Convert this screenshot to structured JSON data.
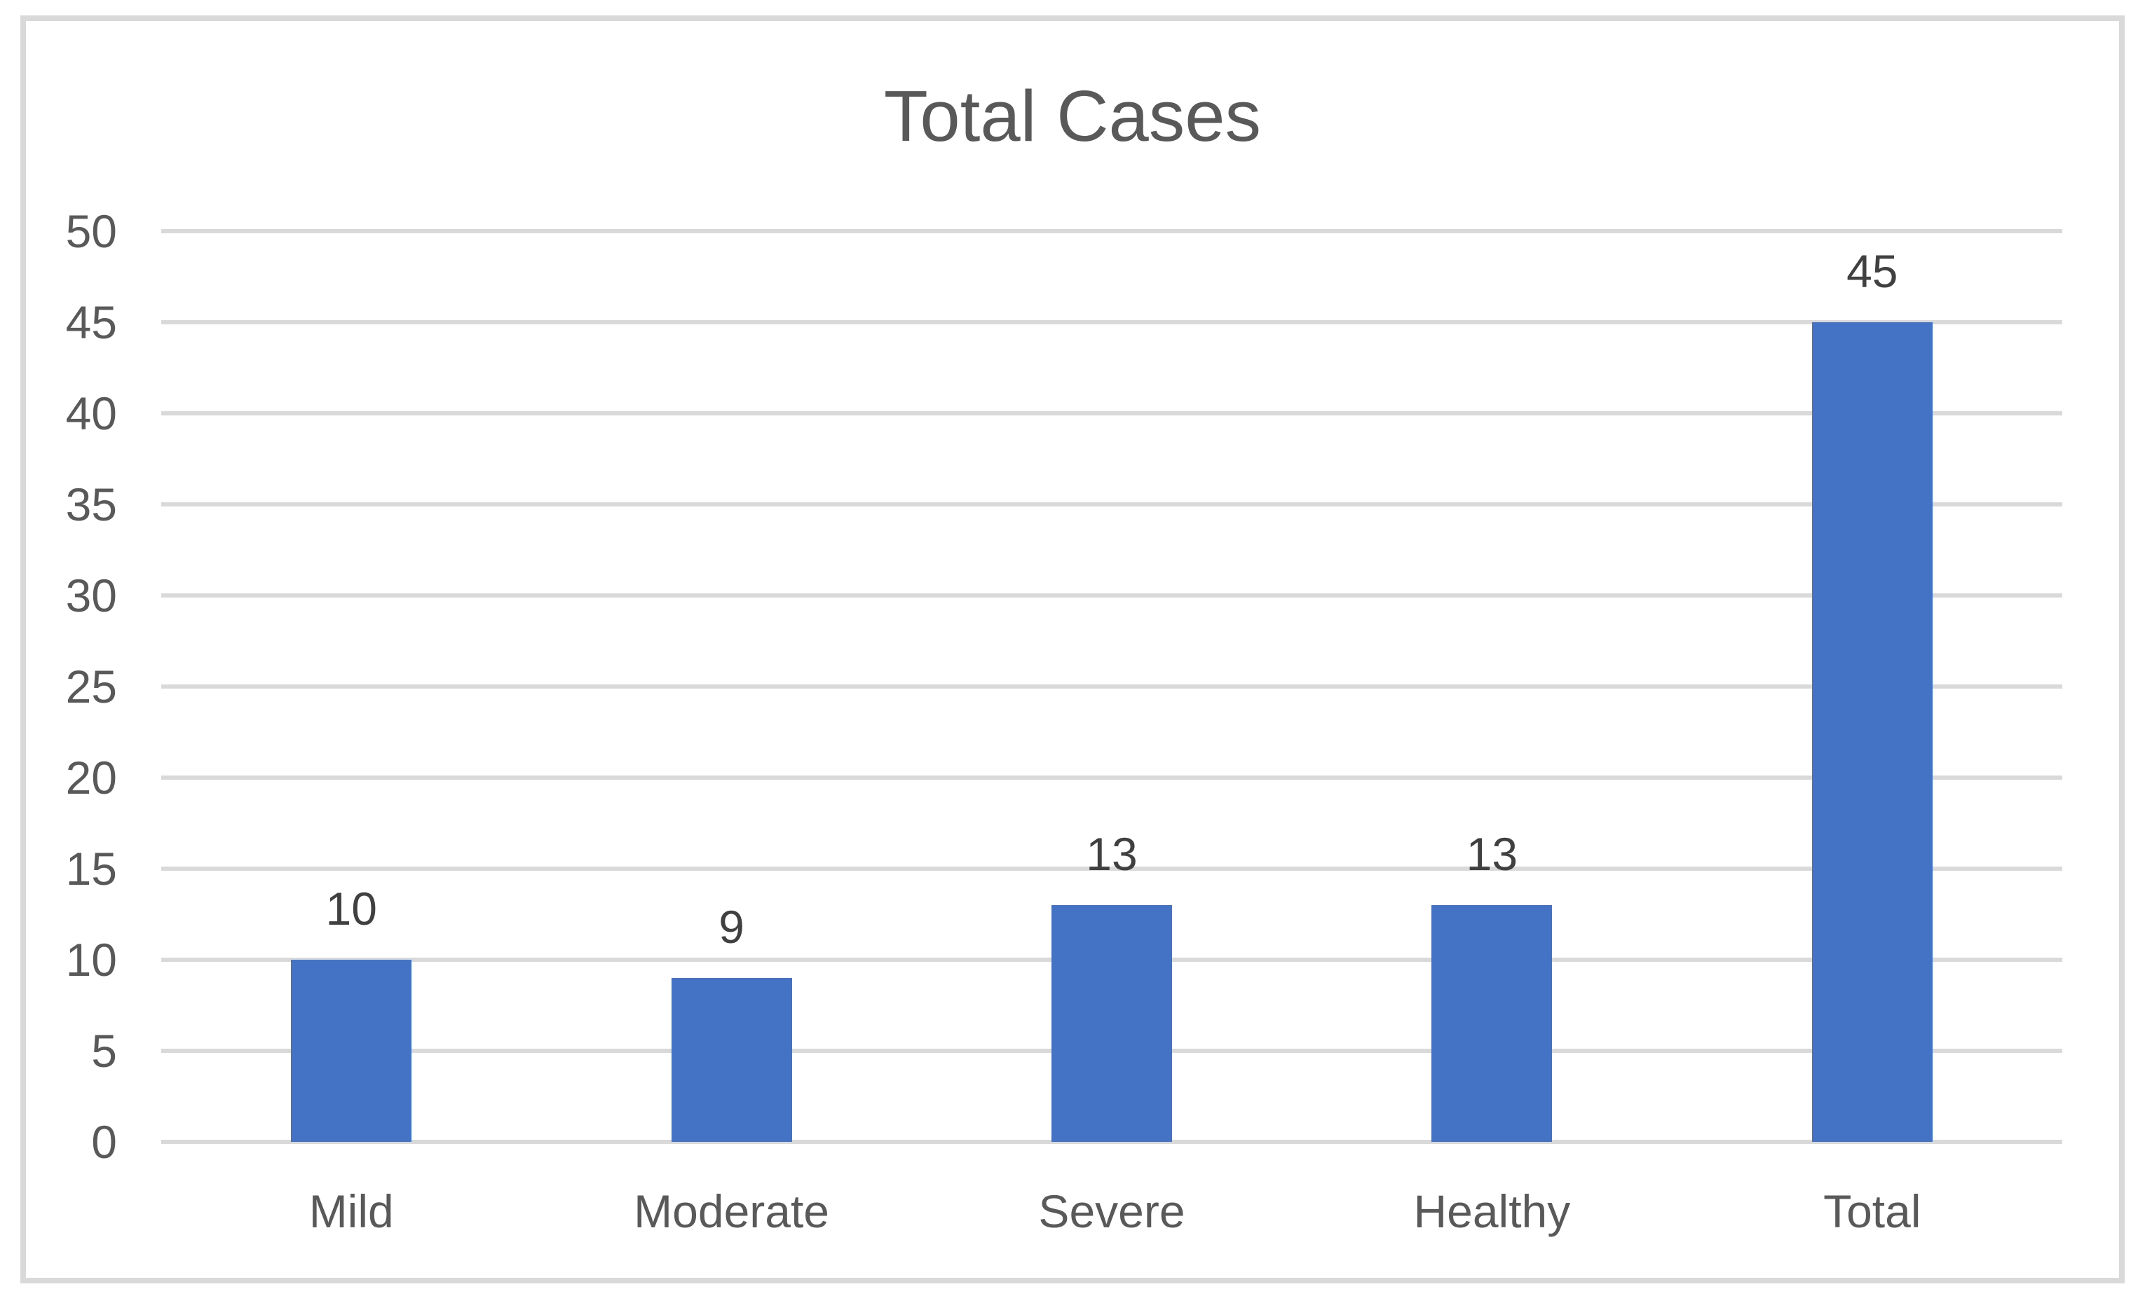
{
  "chart_data": {
    "type": "bar",
    "title": "Total Cases",
    "categories": [
      "Mild",
      "Moderate",
      "Severe",
      "Healthy",
      "Total"
    ],
    "values": [
      10,
      9,
      13,
      13,
      45
    ],
    "data_labels": [
      "10",
      "9",
      "13",
      "13",
      "45"
    ],
    "xlabel": "",
    "ylabel": "",
    "ylim": [
      0,
      50
    ],
    "y_step": 5,
    "y_tick_labels": [
      "0",
      "5",
      "10",
      "15",
      "20",
      "25",
      "30",
      "35",
      "40",
      "45",
      "50"
    ],
    "grid": "on",
    "legend": "none",
    "colors": {
      "bar": "#4472C4",
      "gridline": "#D9D9D9",
      "chart_border": "#D9D9D9",
      "title_text": "#595959",
      "axis_text": "#595959",
      "data_label_text": "#404040",
      "background": "#FFFFFF"
    }
  }
}
